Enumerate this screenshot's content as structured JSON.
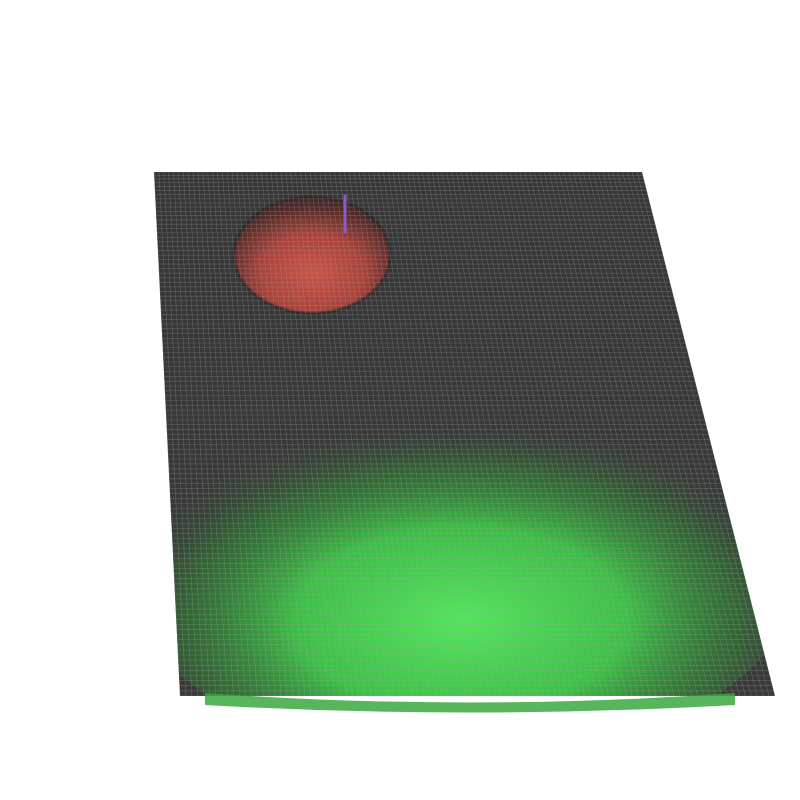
{
  "scene": {
    "background_color": "#ffffff",
    "surface_color": "#3a3a3a",
    "grid_line_color": "#a9a9a9",
    "wireframe": true,
    "regions": [
      {
        "name": "red-dome",
        "color": "#c9443a",
        "shape": "spherical cap",
        "relief": "raised"
      },
      {
        "name": "green-mound",
        "color": "#3fd24a",
        "shape": "broad mound",
        "relief": "raised"
      }
    ],
    "marker": {
      "name": "vertical-marker",
      "color": "#8a5cc8"
    }
  }
}
